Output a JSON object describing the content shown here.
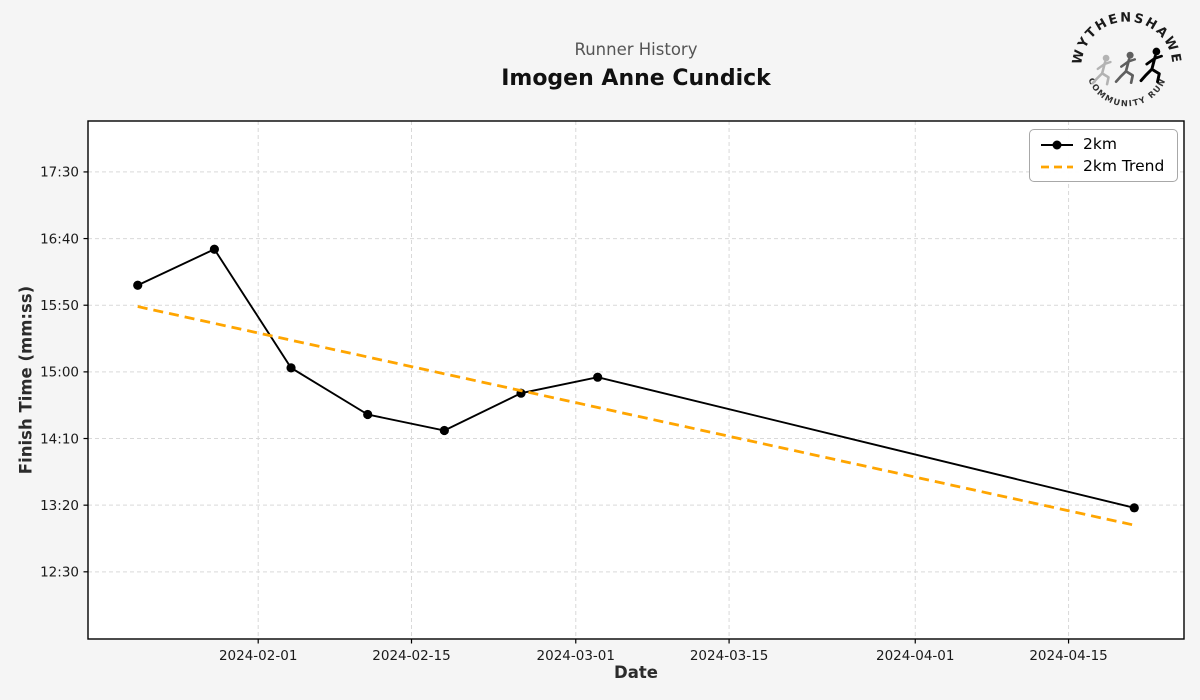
{
  "page": {
    "background_color": "#f5f5f5"
  },
  "header": {
    "subtitle": "Runner History",
    "title": "Imogen Anne Cundick"
  },
  "logo": {
    "arc_top_text": "WYTHENSHAWE",
    "arc_bottom_text": "COMMUNITY RUN",
    "runner_colors": [
      "#b3b3b3",
      "#5f5f5f",
      "#000000"
    ]
  },
  "chart_data": {
    "type": "line",
    "title": "Runner History",
    "runner_name": "Imogen Anne Cundick",
    "xlabel": "Date",
    "ylabel": "Finish Time (mm:ss)",
    "grid": true,
    "legend_position": "top-right",
    "x_domain": [
      "2024-01-16T11:00",
      "2024-04-25T13:00"
    ],
    "y_domain_seconds": [
      699.6,
      1088.2
    ],
    "x_ticks": [
      {
        "date": "2024-02-01",
        "label": "2024-02-01"
      },
      {
        "date": "2024-02-15",
        "label": "2024-02-15"
      },
      {
        "date": "2024-03-01",
        "label": "2024-03-01"
      },
      {
        "date": "2024-03-15",
        "label": "2024-03-15"
      },
      {
        "date": "2024-04-01",
        "label": "2024-04-01"
      },
      {
        "date": "2024-04-15",
        "label": "2024-04-15"
      }
    ],
    "y_ticks": [
      {
        "seconds": 1050,
        "label": "17:30"
      },
      {
        "seconds": 1000,
        "label": "16:40"
      },
      {
        "seconds": 950,
        "label": "15:50"
      },
      {
        "seconds": 900,
        "label": "15:00"
      },
      {
        "seconds": 850,
        "label": "14:10"
      },
      {
        "seconds": 800,
        "label": "13:20"
      },
      {
        "seconds": 750,
        "label": "12:30"
      }
    ],
    "series": [
      {
        "name": "2km",
        "style": "solid-with-markers",
        "color": "#000000",
        "points": [
          {
            "date": "2024-01-21",
            "seconds": 965,
            "time": "16:05"
          },
          {
            "date": "2024-01-28",
            "seconds": 992,
            "time": "16:32"
          },
          {
            "date": "2024-02-04",
            "seconds": 903,
            "time": "15:03"
          },
          {
            "date": "2024-02-11",
            "seconds": 868,
            "time": "14:28"
          },
          {
            "date": "2024-02-18",
            "seconds": 856,
            "time": "14:16"
          },
          {
            "date": "2024-02-25",
            "seconds": 884,
            "time": "14:44"
          },
          {
            "date": "2024-03-03",
            "seconds": 896,
            "time": "14:56"
          },
          {
            "date": "2024-04-21",
            "seconds": 798,
            "time": "13:18"
          }
        ]
      },
      {
        "name": "2km Trend",
        "style": "dashed",
        "color": "#FFA500",
        "points": [
          {
            "date": "2024-01-21",
            "seconds": 949,
            "time": "15:49"
          },
          {
            "date": "2024-04-21",
            "seconds": 785,
            "time": "13:05"
          }
        ]
      }
    ]
  },
  "colors": {
    "figure_background": "#f5f5f5",
    "plot_background": "#ffffff",
    "grid": "#d9d9d9",
    "spine": "#000000",
    "tick_label": "#1a1a1a",
    "series_2km": "#000000",
    "series_trend": "#FFA500"
  }
}
